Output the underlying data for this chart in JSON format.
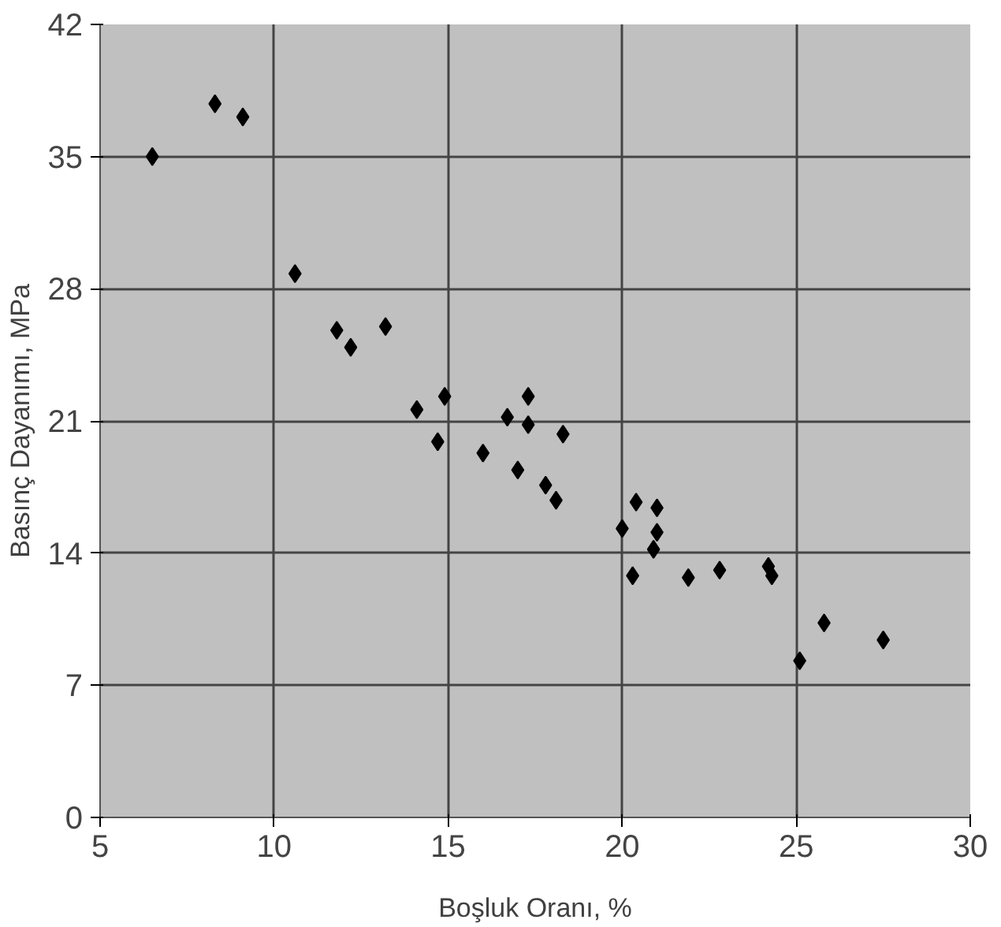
{
  "chart_data": {
    "type": "scatter",
    "xlabel": "Boşluk Oranı, %",
    "ylabel": "Basınç Dayanımı, MPa",
    "x": [
      6.5,
      8.3,
      9.1,
      10.6,
      11.8,
      12.2,
      13.2,
      14.1,
      14.9,
      14.7,
      16.0,
      16.7,
      17.3,
      17.3,
      17.0,
      18.3,
      17.8,
      18.1,
      20.0,
      20.4,
      21.0,
      21.0,
      20.9,
      20.3,
      21.9,
      22.8,
      24.2,
      24.3,
      25.1,
      25.8,
      27.5
    ],
    "values": [
      35.0,
      37.8,
      37.1,
      28.8,
      25.8,
      24.9,
      26.0,
      21.6,
      22.3,
      19.9,
      19.3,
      21.2,
      22.3,
      20.8,
      18.4,
      20.3,
      17.6,
      16.8,
      15.3,
      16.7,
      16.4,
      15.1,
      14.2,
      12.8,
      12.7,
      13.1,
      13.3,
      12.8,
      8.3,
      10.3,
      9.4
    ],
    "color": "#000000",
    "marker": "diamond",
    "grid": true,
    "xlim": [
      5,
      30
    ],
    "xticks": [
      5,
      10,
      15,
      20,
      25,
      30
    ],
    "ylim": [
      0,
      42
    ],
    "yticks": [
      0,
      7,
      14,
      21,
      28,
      35,
      42
    ]
  }
}
